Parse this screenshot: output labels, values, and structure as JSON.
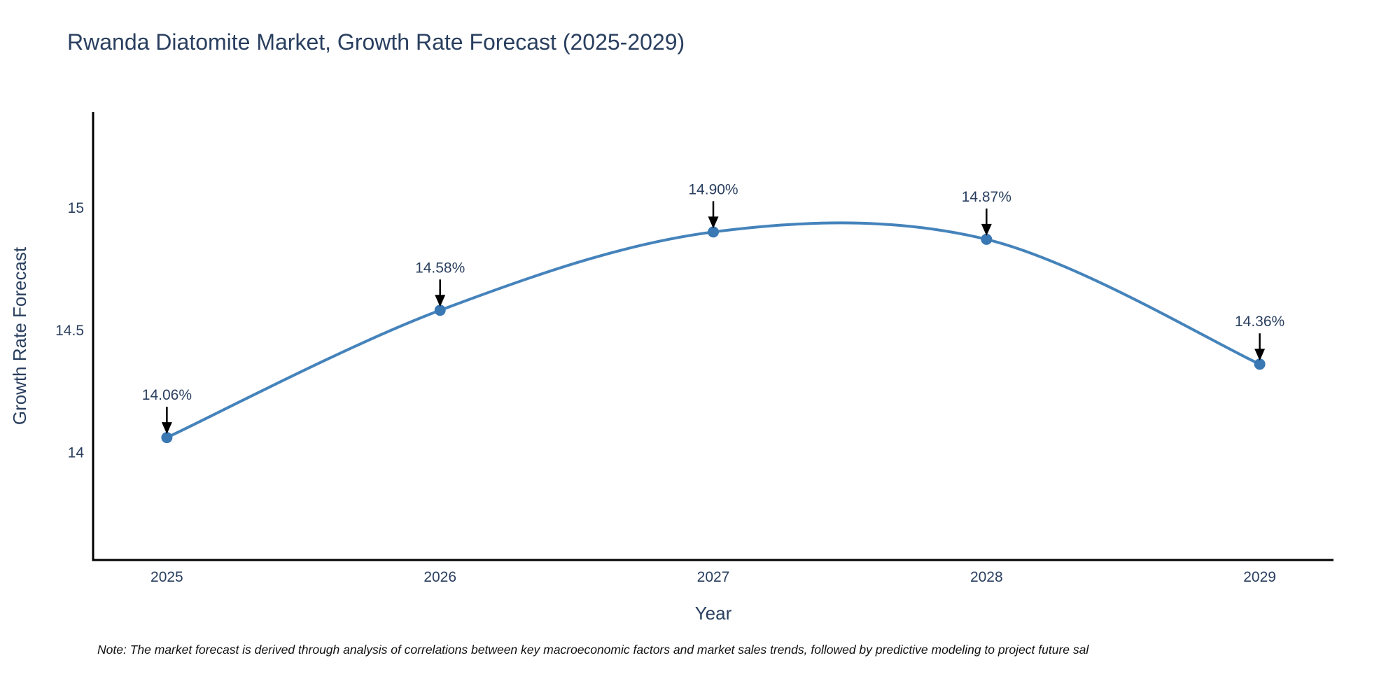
{
  "chart_data": {
    "type": "line",
    "title": "Rwanda Diatomite Market, Growth Rate Forecast (2025-2029)",
    "xlabel": "Year",
    "ylabel": "Growth Rate Forecast",
    "x": [
      2025,
      2026,
      2027,
      2028,
      2029
    ],
    "x_tick_labels": [
      "2025",
      "2026",
      "2027",
      "2028",
      "2029"
    ],
    "series": [
      {
        "name": "Growth Rate Forecast",
        "values": [
          14.06,
          14.58,
          14.9,
          14.87,
          14.36
        ]
      }
    ],
    "point_labels": [
      "14.06%",
      "14.58%",
      "14.90%",
      "14.87%",
      "14.36%"
    ],
    "yticks": [
      14,
      14.5,
      15
    ],
    "ytick_labels": [
      "14",
      "14.5",
      "15"
    ],
    "xlim": [
      2024.73,
      2029.27
    ],
    "ylim": [
      13.56,
      15.39
    ],
    "line_shape": "spline",
    "grid": false,
    "legend_position": "none",
    "note": "Note: The market forecast is derived through analysis of correlations between key macroeconomic factors and market sales trends, followed by predictive modeling to project future sal",
    "colors": {
      "line": "#4583bb",
      "marker": "#3a78b4",
      "axis": "#000000",
      "text": "#2a3f5f",
      "annotation_text": "#2a3f5f",
      "annotation_arrow": "#000000",
      "note_text": "#111111",
      "background": "#ffffff"
    }
  }
}
